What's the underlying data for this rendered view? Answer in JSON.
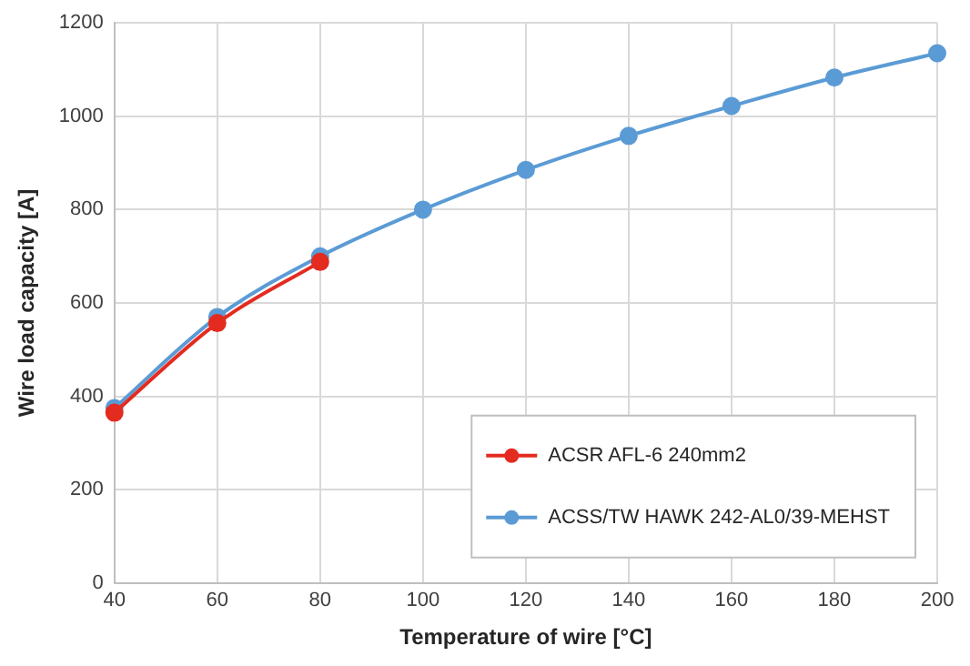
{
  "chart_data": {
    "type": "line",
    "xlabel": "Temperature of wire [°C]",
    "ylabel": "Wire load capacity [A]",
    "x": [
      40,
      60,
      80,
      100,
      120,
      140,
      160,
      180,
      200
    ],
    "series": [
      {
        "name": "ACSR AFL-6 240mm2",
        "color": "#e32b1f",
        "values": [
          365,
          557,
          688,
          null,
          null,
          null,
          null,
          null,
          null
        ]
      },
      {
        "name": "ACSS/TW HAWK 242-AL0/39-MEHST",
        "color": "#5b9bd5",
        "values": [
          375,
          570,
          700,
          800,
          885,
          958,
          1022,
          1083,
          1135
        ]
      }
    ],
    "xlim": [
      40,
      200
    ],
    "xticks": [
      40,
      60,
      80,
      100,
      120,
      140,
      160,
      180,
      200
    ],
    "ylim": [
      0,
      1200
    ],
    "yticks": [
      0,
      200,
      400,
      600,
      800,
      1000,
      1200
    ],
    "grid": true,
    "legend": "bottom right",
    "marker": "circle",
    "line_style": "solid"
  }
}
